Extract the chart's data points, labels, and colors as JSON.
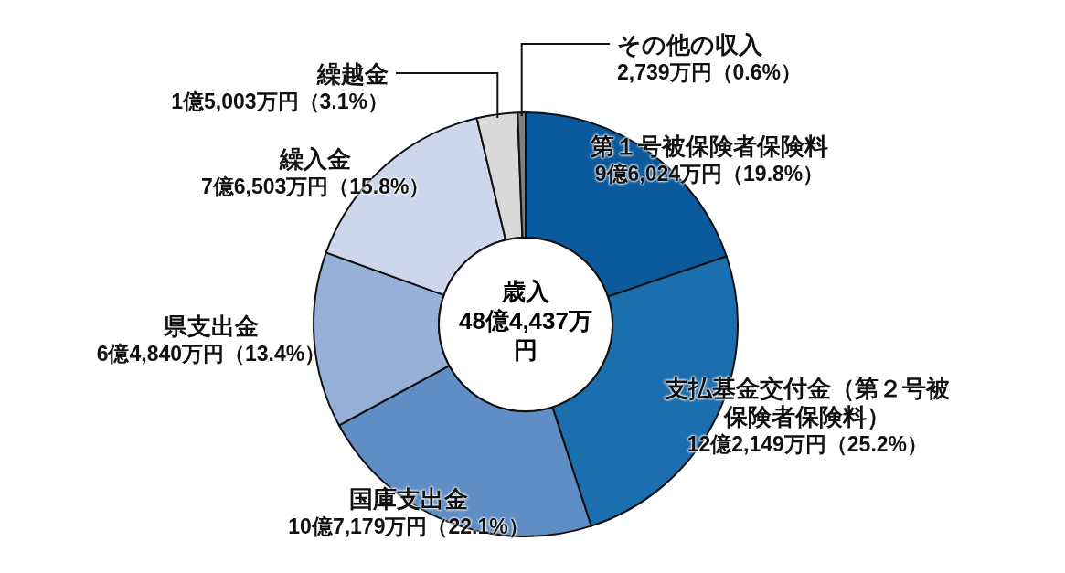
{
  "chart_data": {
    "type": "donut",
    "title": "歳入",
    "subtitle": "48億4,437万円",
    "categories": [
      "第１号被保険者保険料",
      "支払基金交付金（第２号被保険者保険料）",
      "国庫支出金",
      "県支出金",
      "繰入金",
      "繰越金",
      "その他の収入"
    ],
    "values": [
      19.8,
      25.2,
      22.1,
      13.4,
      15.8,
      3.1,
      0.6
    ],
    "value_labels": [
      "9億6,024万円（19.8%）",
      "12億2,149万円（25.2%）",
      "10億7,179万円（22.1%）",
      "6億4,840万円（13.4%）",
      "7億6,503万円（15.8%）",
      "1億5,003万円（3.1%）",
      "2,739万円（0.6%）"
    ],
    "colors": [
      "#0b5a9e",
      "#1b6fae",
      "#5f8dc4",
      "#97b0d8",
      "#ccd7ec",
      "#d9d9d9",
      "#7f7f7f"
    ]
  }
}
